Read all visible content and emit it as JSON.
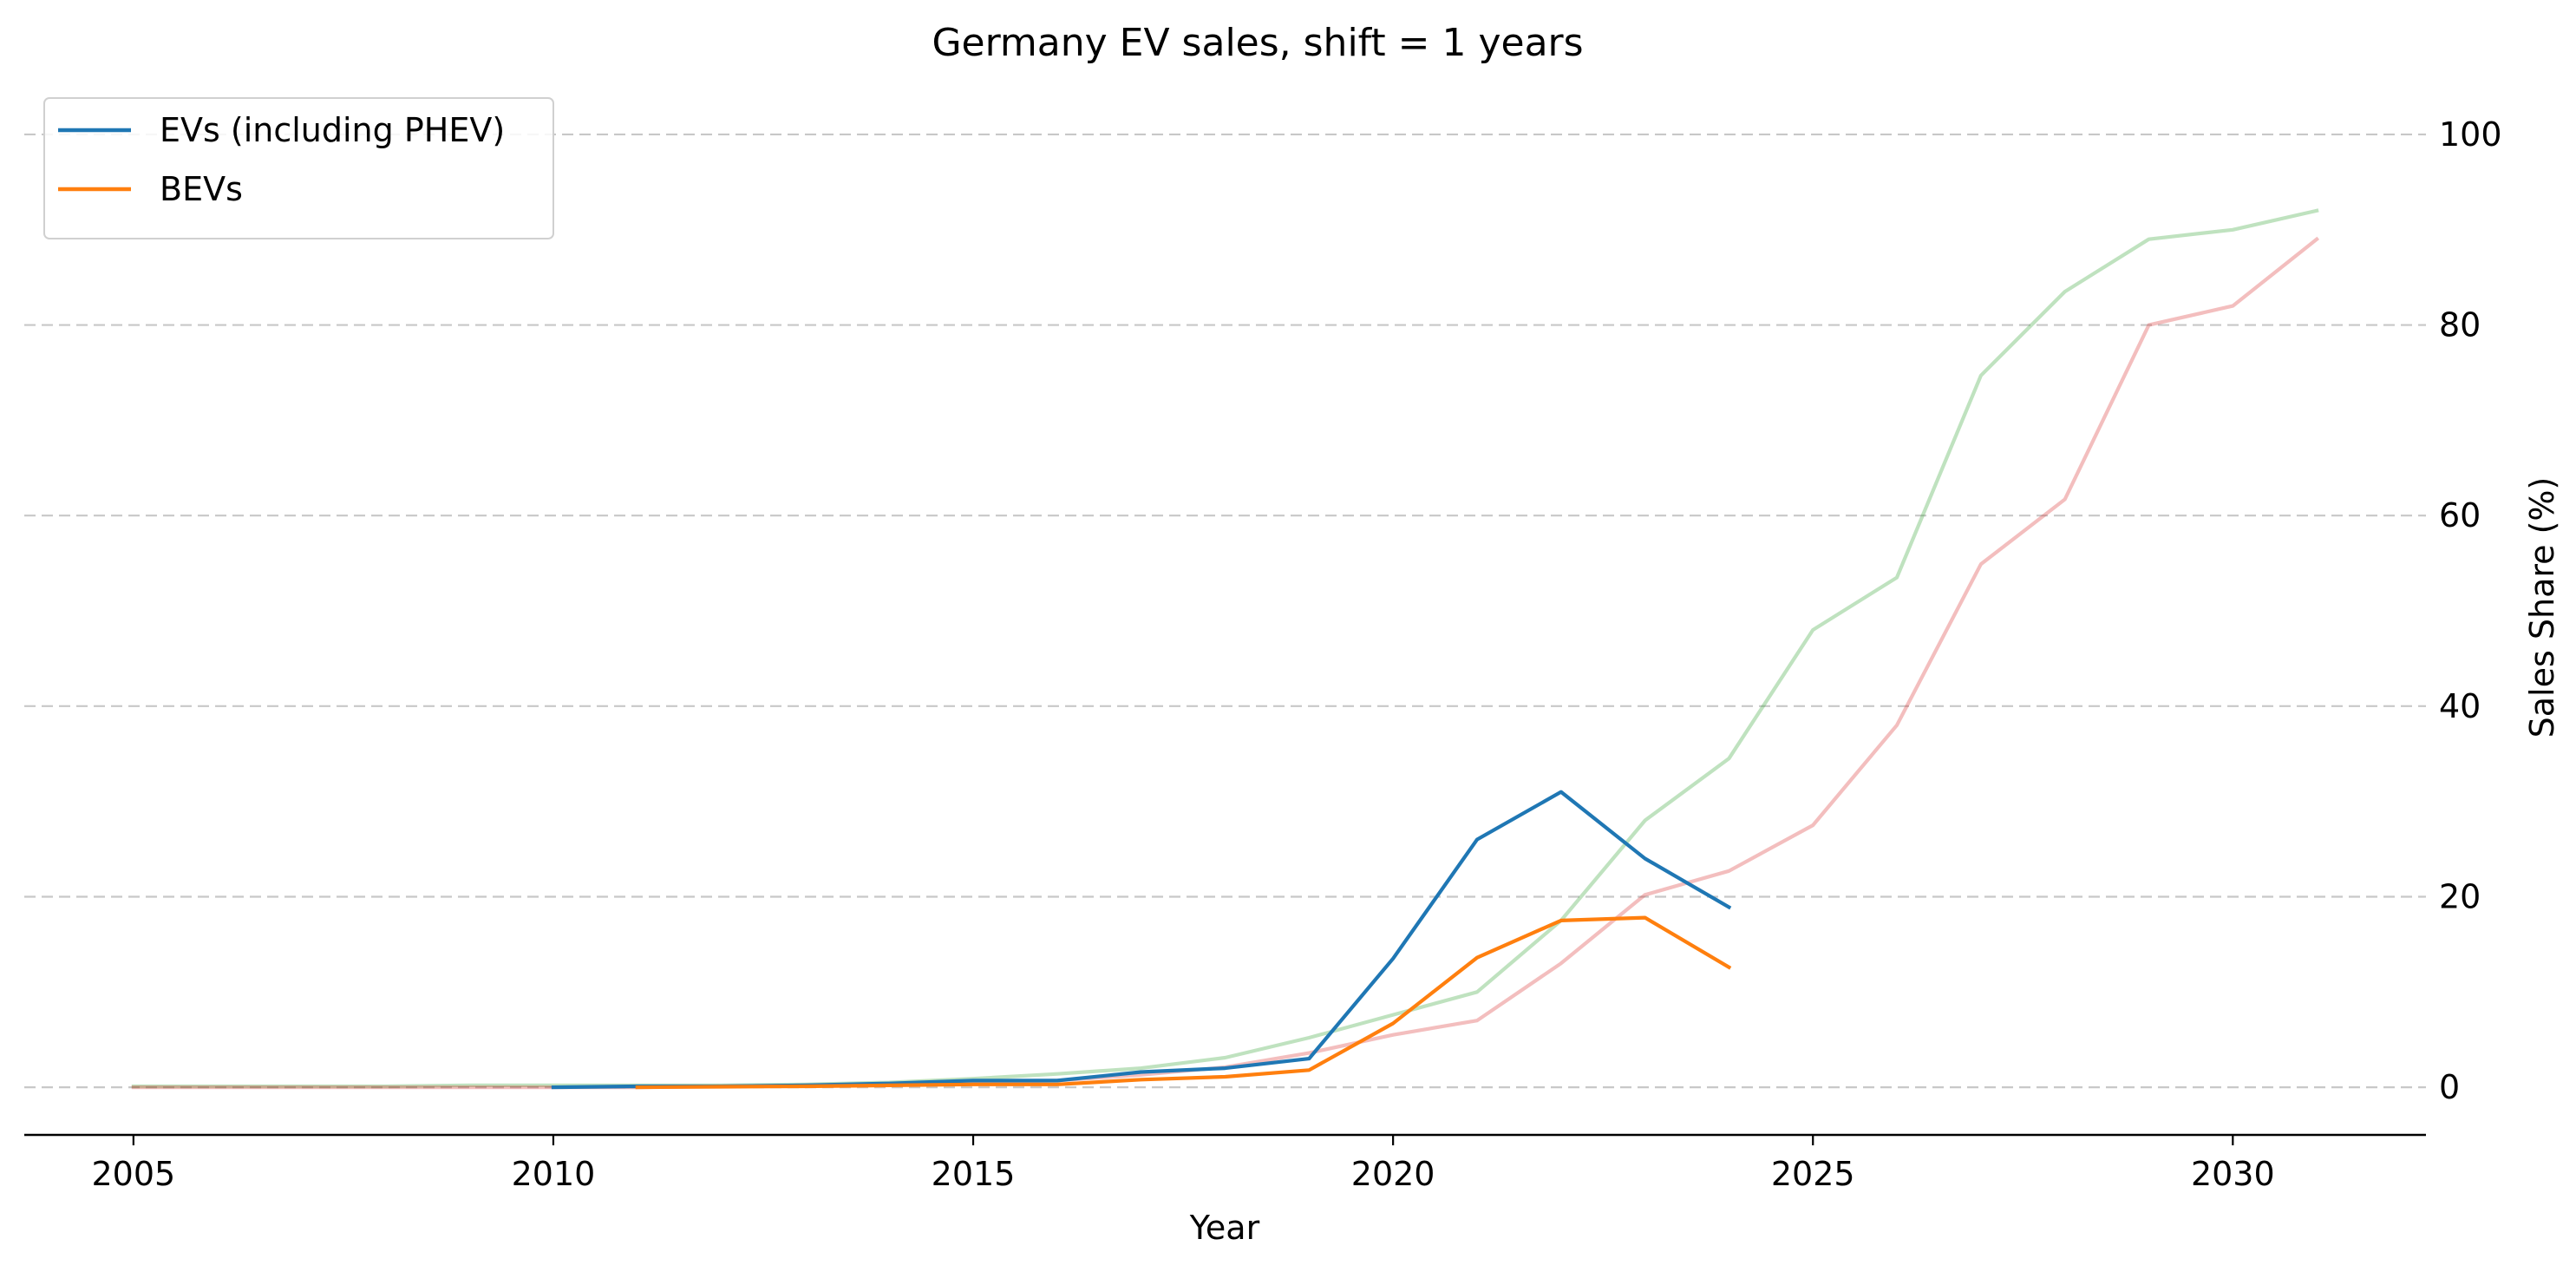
{
  "chart_data": {
    "type": "line",
    "title": "Germany EV sales, shift = 1 years",
    "xlabel": "Year",
    "ylabel": "Sales Share (%)",
    "xlim": [
      2003.7,
      2032.3
    ],
    "ylim": [
      -5,
      103
    ],
    "xticks": [
      2005,
      2010,
      2015,
      2020,
      2025,
      2030
    ],
    "yticks": [
      0,
      20,
      40,
      60,
      80,
      100
    ],
    "y_axis_side": "right",
    "grid": "horizontal dashed",
    "legend_position": "top-left",
    "series": [
      {
        "name": "EVs (including PHEV)",
        "color": "#1f77b4",
        "in_legend": true,
        "x": [
          2010,
          2011,
          2012,
          2013,
          2014,
          2015,
          2016,
          2017,
          2018,
          2019,
          2020,
          2021,
          2022,
          2023,
          2024
        ],
        "values": [
          0.0,
          0.1,
          0.1,
          0.2,
          0.4,
          0.7,
          0.7,
          1.6,
          2.0,
          3.0,
          13.5,
          26.0,
          31.0,
          24.0,
          18.9
        ]
      },
      {
        "name": "BEVs",
        "color": "#ff7f0e",
        "in_legend": true,
        "x": [
          2011,
          2012,
          2013,
          2014,
          2015,
          2016,
          2017,
          2018,
          2019,
          2020,
          2021,
          2022,
          2023,
          2024
        ],
        "values": [
          0.0,
          0.05,
          0.1,
          0.2,
          0.3,
          0.3,
          0.8,
          1.1,
          1.8,
          6.7,
          13.6,
          17.5,
          17.8,
          12.6
        ]
      },
      {
        "color": "#2ca02c",
        "opacity": 0.3,
        "in_legend": false,
        "x": [
          2005,
          2006,
          2007,
          2008,
          2009,
          2010,
          2011,
          2012,
          2013,
          2014,
          2015,
          2016,
          2017,
          2018,
          2019,
          2020,
          2021,
          2022,
          2023,
          2024,
          2025,
          2026,
          2027,
          2028,
          2029,
          2030,
          2031
        ],
        "values": [
          0.1,
          0.1,
          0.1,
          0.1,
          0.2,
          0.2,
          0.2,
          0.2,
          0.3,
          0.5,
          0.9,
          1.4,
          2.0,
          3.1,
          5.2,
          7.6,
          10.0,
          17.5,
          28.0,
          34.5,
          48.0,
          53.5,
          74.7,
          83.5,
          89.0,
          90.0,
          92.0
        ]
      },
      {
        "color": "#d62728",
        "opacity": 0.3,
        "in_legend": false,
        "x": [
          2005,
          2006,
          2007,
          2008,
          2009,
          2010,
          2011,
          2012,
          2013,
          2014,
          2015,
          2016,
          2017,
          2018,
          2019,
          2020,
          2021,
          2022,
          2023,
          2024,
          2025,
          2026,
          2027,
          2028,
          2029,
          2030,
          2031
        ],
        "values": [
          0.0,
          0.0,
          0.0,
          0.0,
          0.0,
          0.0,
          0.0,
          0.1,
          0.2,
          0.3,
          0.5,
          0.7,
          1.3,
          2.1,
          3.6,
          5.5,
          7.0,
          13.0,
          20.2,
          22.7,
          27.5,
          38.0,
          54.9,
          61.7,
          80.0,
          82.0,
          89.0
        ]
      }
    ]
  }
}
